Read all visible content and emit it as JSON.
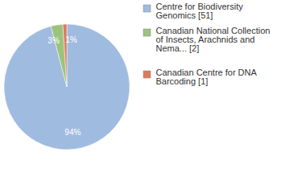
{
  "chart_data": {
    "type": "pie",
    "categories": [
      "Centre for Biodiversity Genomics [51]",
      "Canadian National Collection of Insects, Arachnids and Nema... [2]",
      "Canadian Centre for DNA Barcoding [1]"
    ],
    "values": [
      94,
      3,
      1
    ],
    "value_labels": [
      "94%",
      "3%",
      "1%"
    ],
    "colors": [
      "#9fbbe0",
      "#9cc37c",
      "#e07a5c"
    ],
    "data_labels": true,
    "legend": "right"
  }
}
